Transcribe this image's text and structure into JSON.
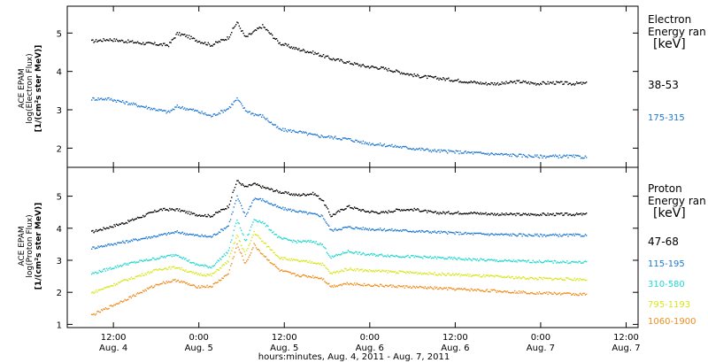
{
  "chart_data": [
    {
      "type": "scatter",
      "panel": "electron",
      "ylabel_lines": [
        "ACE EPAM",
        "log(Electron Flux)",
        "[1/(cm²s ster MeV)]"
      ],
      "ylim": [
        1.5,
        5.7
      ],
      "yticks": [
        2,
        3,
        4,
        5
      ],
      "legend_title_lines": [
        "Electron",
        "Energy ran"
      ],
      "legend_unit": "[keV]",
      "series": [
        {
          "name": "38-53",
          "color": "#000000",
          "x": [
            0,
            0.1,
            0.3,
            0.45,
            0.5,
            0.55,
            0.6,
            0.7,
            0.8,
            0.85,
            0.9,
            1.0,
            1.1,
            1.2,
            1.3,
            1.4,
            1.5,
            1.6,
            1.7,
            1.8,
            1.9,
            2.0,
            2.1,
            2.2,
            2.3,
            2.4,
            2.5,
            2.6,
            2.7,
            2.8,
            2.9
          ],
          "y": [
            4.8,
            4.85,
            4.75,
            4.7,
            5.0,
            4.95,
            4.85,
            4.7,
            4.9,
            5.3,
            4.9,
            5.2,
            4.75,
            4.6,
            4.5,
            4.35,
            4.25,
            4.15,
            4.1,
            4.0,
            3.9,
            3.85,
            3.8,
            3.75,
            3.7,
            3.7,
            3.75,
            3.7,
            3.72,
            3.7,
            3.7
          ]
        },
        {
          "name": "175-315",
          "color": "#1e78d2",
          "x": [
            0,
            0.1,
            0.3,
            0.45,
            0.5,
            0.6,
            0.7,
            0.8,
            0.85,
            0.9,
            0.95,
            1.0,
            1.1,
            1.2,
            1.3,
            1.4,
            1.5,
            1.6,
            1.7,
            1.8,
            1.9,
            2.0,
            2.2,
            2.4,
            2.6,
            2.8,
            2.9
          ],
          "y": [
            3.3,
            3.3,
            3.1,
            2.95,
            3.1,
            3.0,
            2.85,
            3.05,
            3.3,
            3.0,
            2.9,
            2.85,
            2.5,
            2.45,
            2.35,
            2.3,
            2.25,
            2.15,
            2.1,
            2.05,
            2.0,
            1.95,
            1.9,
            1.85,
            1.8,
            1.8,
            1.78
          ]
        }
      ]
    },
    {
      "type": "scatter",
      "panel": "proton",
      "ylabel_lines": [
        "ACE EPAM",
        "log(Proton Flux)",
        "[1/(cm²s ster MeV)]"
      ],
      "ylim": [
        0.9,
        5.9
      ],
      "yticks": [
        1,
        2,
        3,
        4,
        5
      ],
      "legend_title_lines": [
        "Proton",
        "Energy ran"
      ],
      "legend_unit": "[keV]",
      "series": [
        {
          "name": "47-68",
          "color": "#000000",
          "x": [
            0,
            0.2,
            0.4,
            0.5,
            0.6,
            0.7,
            0.8,
            0.85,
            0.9,
            0.95,
            1.0,
            1.1,
            1.2,
            1.3,
            1.35,
            1.4,
            1.5,
            1.6,
            1.7,
            1.8,
            1.9,
            2.0,
            2.2,
            2.4,
            2.6,
            2.9
          ],
          "y": [
            3.9,
            4.2,
            4.6,
            4.6,
            4.45,
            4.4,
            4.7,
            5.5,
            5.3,
            5.4,
            5.3,
            5.15,
            5.05,
            5.1,
            4.9,
            4.4,
            4.7,
            4.55,
            4.5,
            4.6,
            4.6,
            4.5,
            4.5,
            4.45,
            4.45,
            4.45
          ]
        },
        {
          "name": "115-195",
          "color": "#1e78d2",
          "x": [
            0,
            0.2,
            0.4,
            0.5,
            0.6,
            0.7,
            0.8,
            0.85,
            0.9,
            0.95,
            1.0,
            1.1,
            1.2,
            1.3,
            1.35,
            1.4,
            1.5,
            1.6,
            1.8,
            2.0,
            2.2,
            2.4,
            2.6,
            2.9
          ],
          "y": [
            3.4,
            3.6,
            3.8,
            3.9,
            3.8,
            3.75,
            4.1,
            5.0,
            4.4,
            4.95,
            4.9,
            4.65,
            4.55,
            4.45,
            4.4,
            3.95,
            4.05,
            4.0,
            3.95,
            3.9,
            3.85,
            3.82,
            3.8,
            3.8
          ]
        },
        {
          "name": "310-580",
          "color": "#20d8d0",
          "x": [
            0,
            0.2,
            0.4,
            0.5,
            0.6,
            0.7,
            0.8,
            0.85,
            0.9,
            0.95,
            1.0,
            1.1,
            1.2,
            1.3,
            1.35,
            1.4,
            1.5,
            1.6,
            1.8,
            2.0,
            2.2,
            2.4,
            2.6,
            2.9
          ],
          "y": [
            2.6,
            2.9,
            3.1,
            3.2,
            2.9,
            2.8,
            3.3,
            4.3,
            3.6,
            4.3,
            4.2,
            3.7,
            3.6,
            3.6,
            3.5,
            3.1,
            3.3,
            3.2,
            3.15,
            3.1,
            3.05,
            3.0,
            2.98,
            2.95
          ]
        },
        {
          "name": "795-1193",
          "color": "#d8e61a",
          "x": [
            0,
            0.2,
            0.4,
            0.5,
            0.6,
            0.7,
            0.8,
            0.85,
            0.9,
            0.95,
            1.0,
            1.1,
            1.2,
            1.3,
            1.35,
            1.4,
            1.5,
            1.6,
            1.8,
            2.0,
            2.2,
            2.4,
            2.6,
            2.9
          ],
          "y": [
            2.0,
            2.4,
            2.75,
            2.8,
            2.6,
            2.55,
            3.0,
            3.8,
            3.2,
            3.9,
            3.6,
            3.1,
            3.0,
            2.95,
            2.9,
            2.6,
            2.75,
            2.7,
            2.65,
            2.6,
            2.55,
            2.5,
            2.45,
            2.42
          ]
        },
        {
          "name": "1060-1900",
          "color": "#f08c1e",
          "x": [
            0,
            0.2,
            0.4,
            0.5,
            0.6,
            0.7,
            0.8,
            0.85,
            0.9,
            0.95,
            1.0,
            1.1,
            1.2,
            1.3,
            1.35,
            1.4,
            1.5,
            1.6,
            1.8,
            2.0,
            2.2,
            2.4,
            2.6,
            2.9
          ],
          "y": [
            1.3,
            1.8,
            2.3,
            2.4,
            2.2,
            2.2,
            2.6,
            3.5,
            2.9,
            3.5,
            3.2,
            2.7,
            2.55,
            2.5,
            2.45,
            2.2,
            2.3,
            2.25,
            2.2,
            2.15,
            2.1,
            2.05,
            2.0,
            1.95
          ]
        }
      ]
    }
  ],
  "x_axis": {
    "ticks": [
      {
        "top": "12:00",
        "bottom": "Aug. 4"
      },
      {
        "top": "0:00",
        "bottom": "Aug. 5"
      },
      {
        "top": "12:00",
        "bottom": "Aug. 5"
      },
      {
        "top": "0:00",
        "bottom": "Aug. 6"
      },
      {
        "top": "12:00",
        "bottom": "Aug. 6"
      },
      {
        "top": "0:00",
        "bottom": "Aug. 7"
      },
      {
        "top": "12:00",
        "bottom": "Aug. 7"
      }
    ],
    "xlabel": "hours:minutes, Aug.  4, 2011 - Aug.  7, 2011"
  },
  "legend_labels": {
    "e1": "38-53",
    "e2": "175-315",
    "p1": "47-68",
    "p2": "115-195",
    "p3": "310-580",
    "p4": "795-1193",
    "p5": "1060-1900"
  },
  "legend_titles": {
    "electron_1": "Electron",
    "electron_2": "Energy ran",
    "electron_unit": "[keV]",
    "proton_1": "Proton",
    "proton_2": "Energy ran",
    "proton_unit": "[keV]"
  },
  "ylabels": {
    "e1": "ACE EPAM",
    "e2": "log(Electron Flux)",
    "e3": "[1/(cm²s ster MeV)]",
    "p1": "ACE EPAM",
    "p2": "log(Proton Flux)",
    "p3": "[1/(cm²s ster MeV)]"
  }
}
